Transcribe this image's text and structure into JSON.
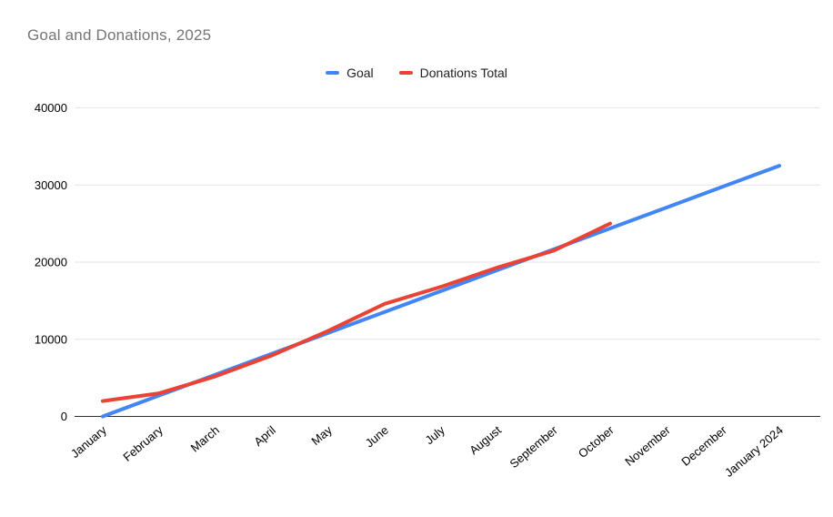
{
  "chart_data": {
    "type": "line",
    "title": "Goal and Donations, 2025",
    "categories": [
      "January",
      "February",
      "March",
      "April",
      "May",
      "June",
      "July",
      "August",
      "September",
      "October",
      "November",
      "December",
      "January 2024"
    ],
    "series": [
      {
        "name": "Goal",
        "color": "#4285F4",
        "values": [
          0,
          2708,
          5417,
          8125,
          10833,
          13542,
          16250,
          18958,
          21667,
          24375,
          27083,
          29792,
          32500
        ]
      },
      {
        "name": "Donations Total",
        "color": "#EA4335",
        "values": [
          2000,
          3000,
          5200,
          7900,
          11100,
          14600,
          16800,
          19300,
          21500,
          25000
        ]
      }
    ],
    "xlabel": "",
    "ylabel": "",
    "y_ticks": [
      0,
      10000,
      20000,
      30000,
      40000
    ],
    "ylim": [
      0,
      40000
    ],
    "grid": true,
    "legend_position": "top",
    "colors": {
      "title_text": "#757575",
      "axis_text": "#000000",
      "gridline": "#e6e6e6",
      "axis_line": "#333333",
      "background": "#ffffff"
    }
  }
}
